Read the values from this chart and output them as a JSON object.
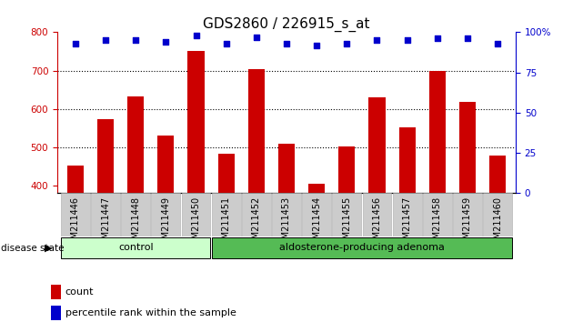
{
  "title": "GDS2860 / 226915_s_at",
  "samples": [
    "GSM211446",
    "GSM211447",
    "GSM211448",
    "GSM211449",
    "GSM211450",
    "GSM211451",
    "GSM211452",
    "GSM211453",
    "GSM211454",
    "GSM211455",
    "GSM211456",
    "GSM211457",
    "GSM211458",
    "GSM211459",
    "GSM211460"
  ],
  "counts": [
    452,
    572,
    632,
    530,
    752,
    483,
    703,
    510,
    405,
    503,
    630,
    552,
    700,
    618,
    478
  ],
  "percentile_ranks": [
    93,
    95,
    95,
    94,
    98,
    93,
    97,
    93,
    92,
    93,
    95,
    95,
    96,
    96,
    93
  ],
  "ylim_left": [
    380,
    800
  ],
  "ylim_right": [
    0,
    100
  ],
  "y_ticks_left": [
    400,
    500,
    600,
    700,
    800
  ],
  "y_ticks_right": [
    0,
    25,
    50,
    75,
    100
  ],
  "bar_color": "#cc0000",
  "dot_color": "#0000cc",
  "bar_bottom": 380,
  "group_labels": [
    "control",
    "aldosterone-producing adenoma"
  ],
  "group_colors": [
    "#ccffcc",
    "#55bb55"
  ],
  "disease_state_label": "disease state",
  "legend_count_label": "count",
  "legend_pct_label": "percentile rank within the sample",
  "bg_color": "#ffffff",
  "grid_color": "#000000",
  "title_fontsize": 11,
  "tick_fontsize": 7.5
}
